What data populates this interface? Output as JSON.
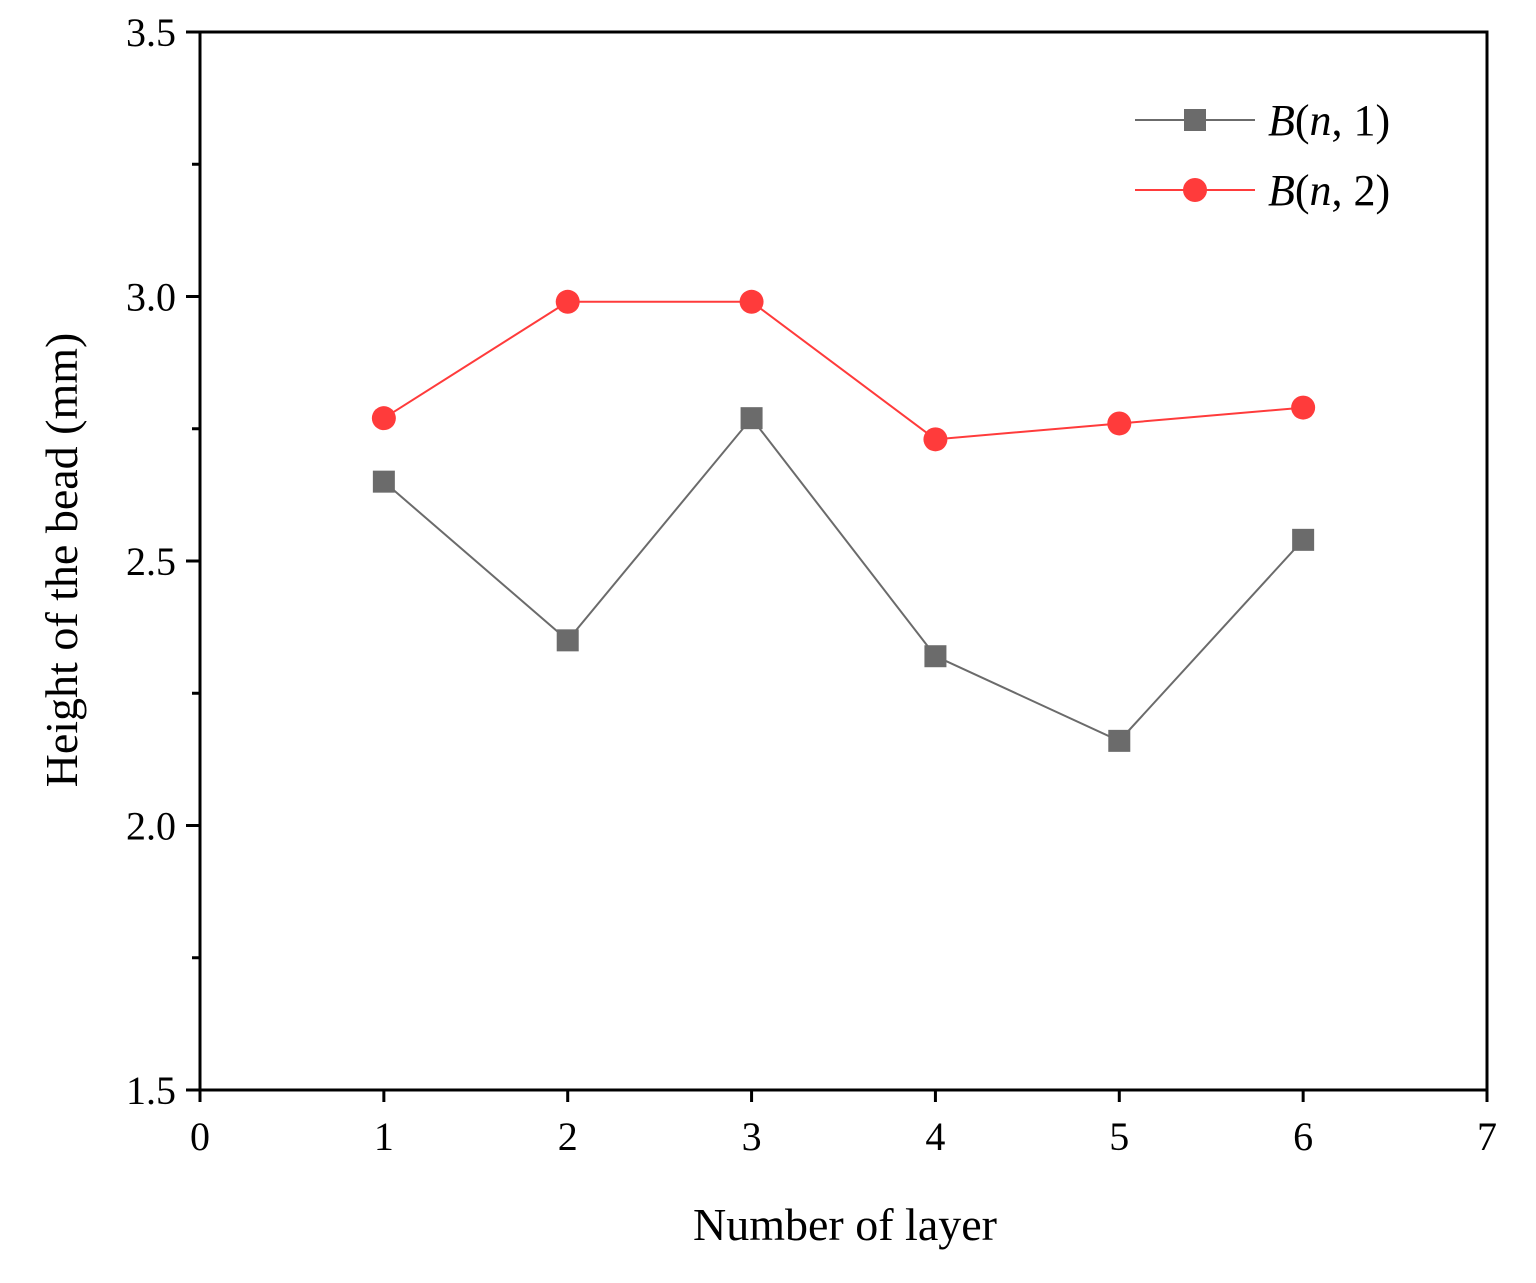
{
  "chart_data": {
    "type": "line",
    "title": "",
    "xlabel": "Number of layer",
    "ylabel": "Height of the bead (mm)",
    "xlim": [
      0,
      7
    ],
    "ylim": [
      1.5,
      3.5
    ],
    "x_ticks": [
      "0",
      "1",
      "2",
      "3",
      "4",
      "5",
      "6",
      "7"
    ],
    "y_ticks": [
      "1.5",
      "2.0",
      "2.5",
      "3.0",
      "3.5"
    ],
    "grid": false,
    "legend_position": "top-right",
    "x": [
      1,
      2,
      3,
      4,
      5,
      6
    ],
    "series": [
      {
        "name": "B(n, 1)",
        "name_italic": "B",
        "name_open": "(",
        "name_var": "n",
        "name_rest": ", 1)",
        "color": "#6b6b6b",
        "marker": "square",
        "values": [
          2.65,
          2.35,
          2.77,
          2.32,
          2.16,
          2.54
        ]
      },
      {
        "name": "B(n, 2)",
        "name_italic": "B",
        "name_open": "(",
        "name_var": "n",
        "name_rest": ", 2)",
        "color": "#ff3b3b",
        "marker": "circle",
        "values": [
          2.77,
          2.99,
          2.99,
          2.73,
          2.76,
          2.79
        ]
      }
    ]
  }
}
